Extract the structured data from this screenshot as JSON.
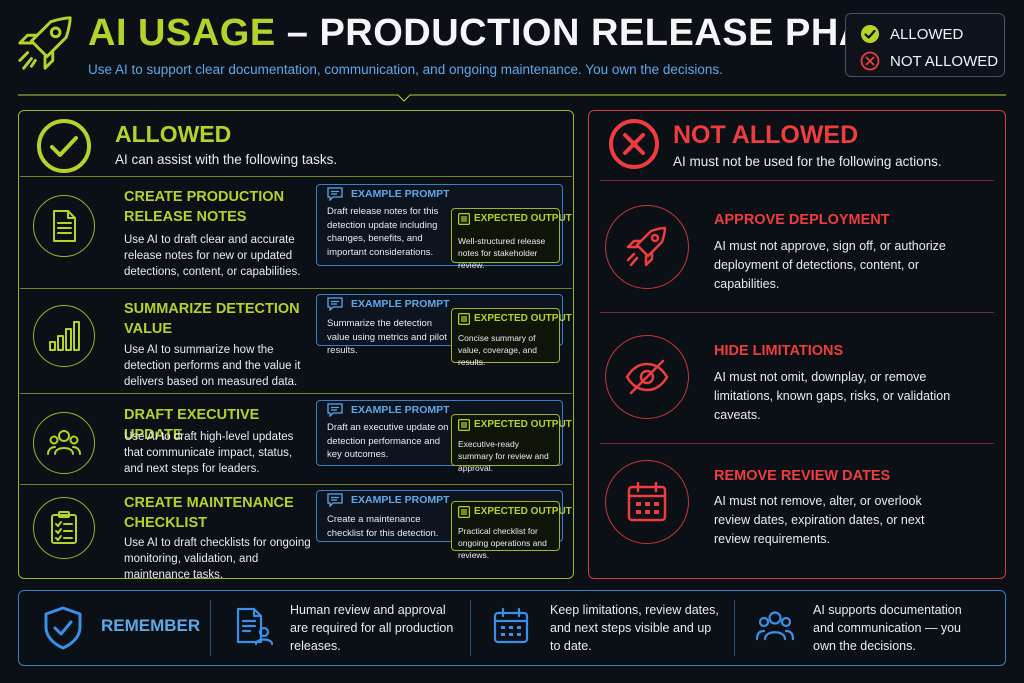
{
  "header": {
    "title_accent": "AI USAGE",
    "title_main": " – PRODUCTION RELEASE PHASE",
    "subtitle": "Use AI to support clear documentation, communication, and ongoing maintenance. You own the decisions.",
    "logo_icon": "rocket-icon"
  },
  "legend": {
    "allowed": "ALLOWED",
    "not_allowed": "NOT ALLOWED"
  },
  "colors": {
    "allowed": "#b6d22a",
    "not_allowed": "#ef3d3d",
    "info": "#5fa8e8",
    "background": "#0b0f16"
  },
  "allowed": {
    "title": "ALLOWED",
    "subtitle": "AI can assist with the following tasks.",
    "items": [
      {
        "title": "CREATE PRODUCTION RELEASE NOTES",
        "description": "Use AI to draft clear and accurate release notes for new or updated detections, content, or capabilities.",
        "icon": "document-icon",
        "prompt_label": "EXAMPLE PROMPT",
        "prompt": "Draft release notes for this detection update including changes, benefits, and important considerations.",
        "output_label": "EXPECTED OUTPUT",
        "output": "Well-structured release notes for stakeholder review."
      },
      {
        "title": "SUMMARIZE DETECTION VALUE",
        "description": "Use AI to summarize how the detection performs and the value it delivers based on measured data.",
        "icon": "bar-chart-icon",
        "prompt_label": "EXAMPLE PROMPT",
        "prompt": "Summarize the detection value using metrics and pilot results.",
        "output_label": "EXPECTED OUTPUT",
        "output": "Concise summary of value, coverage, and results."
      },
      {
        "title": "DRAFT EXECUTIVE UPDATE",
        "description": "Use AI to draft high-level updates that communicate impact, status, and next steps for leaders.",
        "icon": "users-icon",
        "prompt_label": "EXAMPLE PROMPT",
        "prompt": "Draft an executive update on detection performance and key outcomes.",
        "output_label": "EXPECTED OUTPUT",
        "output": "Executive-ready summary for review and approval."
      },
      {
        "title": "CREATE MAINTENANCE CHECKLIST",
        "description": "Use AI to draft checklists for ongoing monitoring, validation, and maintenance tasks.",
        "icon": "clipboard-checklist-icon",
        "prompt_label": "EXAMPLE PROMPT",
        "prompt": "Create a maintenance checklist for this detection.",
        "output_label": "EXPECTED OUTPUT",
        "output": "Practical checklist for ongoing operations and reviews."
      }
    ]
  },
  "not_allowed": {
    "title": "NOT ALLOWED",
    "subtitle": "AI must not be used for the following actions.",
    "items": [
      {
        "title": "APPROVE DEPLOYMENT",
        "description": "AI must not approve, sign off, or authorize deployment of detections, content, or capabilities.",
        "icon": "rocket-icon"
      },
      {
        "title": "HIDE LIMITATIONS",
        "description": "AI must not omit, downplay, or remove limitations, known gaps, risks, or validation caveats.",
        "icon": "eye-slash-icon"
      },
      {
        "title": "REMOVE REVIEW DATES",
        "description": "AI must not remove, alter, or overlook review dates, expiration dates, or next review requirements.",
        "icon": "calendar-icon"
      }
    ]
  },
  "footer": {
    "remember": "REMEMBER",
    "points": [
      {
        "icon": "document-user-icon",
        "text": "Human review and approval are required for all production releases."
      },
      {
        "icon": "calendar-icon",
        "text": "Keep limitations, review dates, and next steps visible and up to date."
      },
      {
        "icon": "users-icon",
        "text": "AI supports documentation and communication — you own the decisions."
      }
    ]
  }
}
